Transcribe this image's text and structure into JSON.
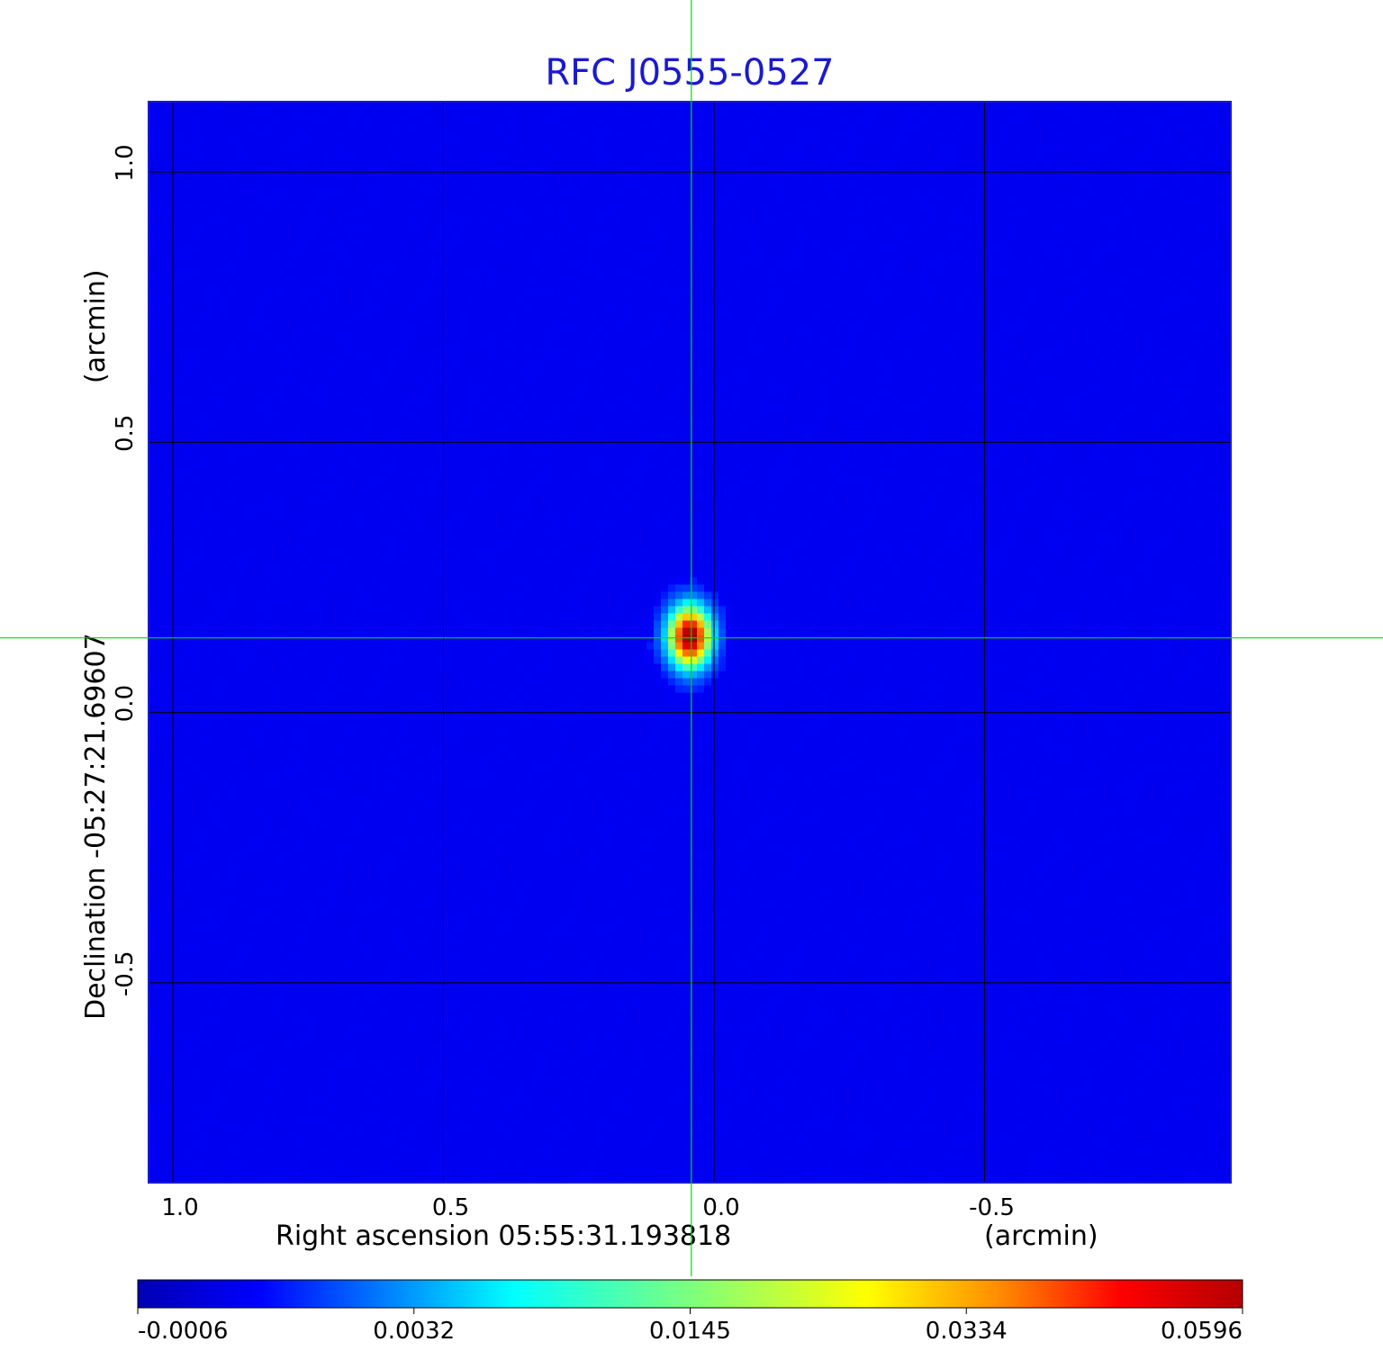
{
  "chart_data": {
    "type": "heatmap",
    "title": "RFC J0555-0527",
    "xlabel": "Right ascension  05:55:31.193818",
    "xlabel_unit": "(arcmin)",
    "ylabel": "Declination  -05:27:21.69607",
    "ylabel_unit": "(arcmin)",
    "xlim": [
      1.045,
      -0.955
    ],
    "ylim": [
      -0.87,
      1.13
    ],
    "x_ticks": [
      {
        "value": 1.0,
        "label": "1.0"
      },
      {
        "value": 0.5,
        "label": "0.5"
      },
      {
        "value": 0.0,
        "label": "0.0"
      },
      {
        "value": -0.5,
        "label": "-0.5"
      }
    ],
    "y_ticks": [
      {
        "value": 1.0,
        "label": "1.0"
      },
      {
        "value": 0.5,
        "label": "0.5"
      },
      {
        "value": 0.0,
        "label": "0.0"
      },
      {
        "value": -0.5,
        "label": "-0.5"
      }
    ],
    "grid": true,
    "crosshair": {
      "x": 0.042,
      "y": 0.138,
      "color": "#00dd00"
    },
    "source": {
      "x": 0.045,
      "y": 0.14,
      "peak": 0.0596,
      "sigma_x": 0.028,
      "sigma_y": 0.04
    },
    "background_level": -0.0003,
    "colorbar": {
      "colormap": "jet",
      "ticks": [
        {
          "value": -0.0006,
          "label": "-0.0006"
        },
        {
          "value": 0.0032,
          "label": "0.0032"
        },
        {
          "value": 0.0145,
          "label": "0.0145"
        },
        {
          "value": 0.0334,
          "label": "0.0334"
        },
        {
          "value": 0.0596,
          "label": "0.0596"
        }
      ],
      "min": -0.0006,
      "max": 0.0596
    },
    "colors": {
      "title": "#1a1ad0",
      "grid": "#000000",
      "crosshair": "#00dd00"
    }
  }
}
